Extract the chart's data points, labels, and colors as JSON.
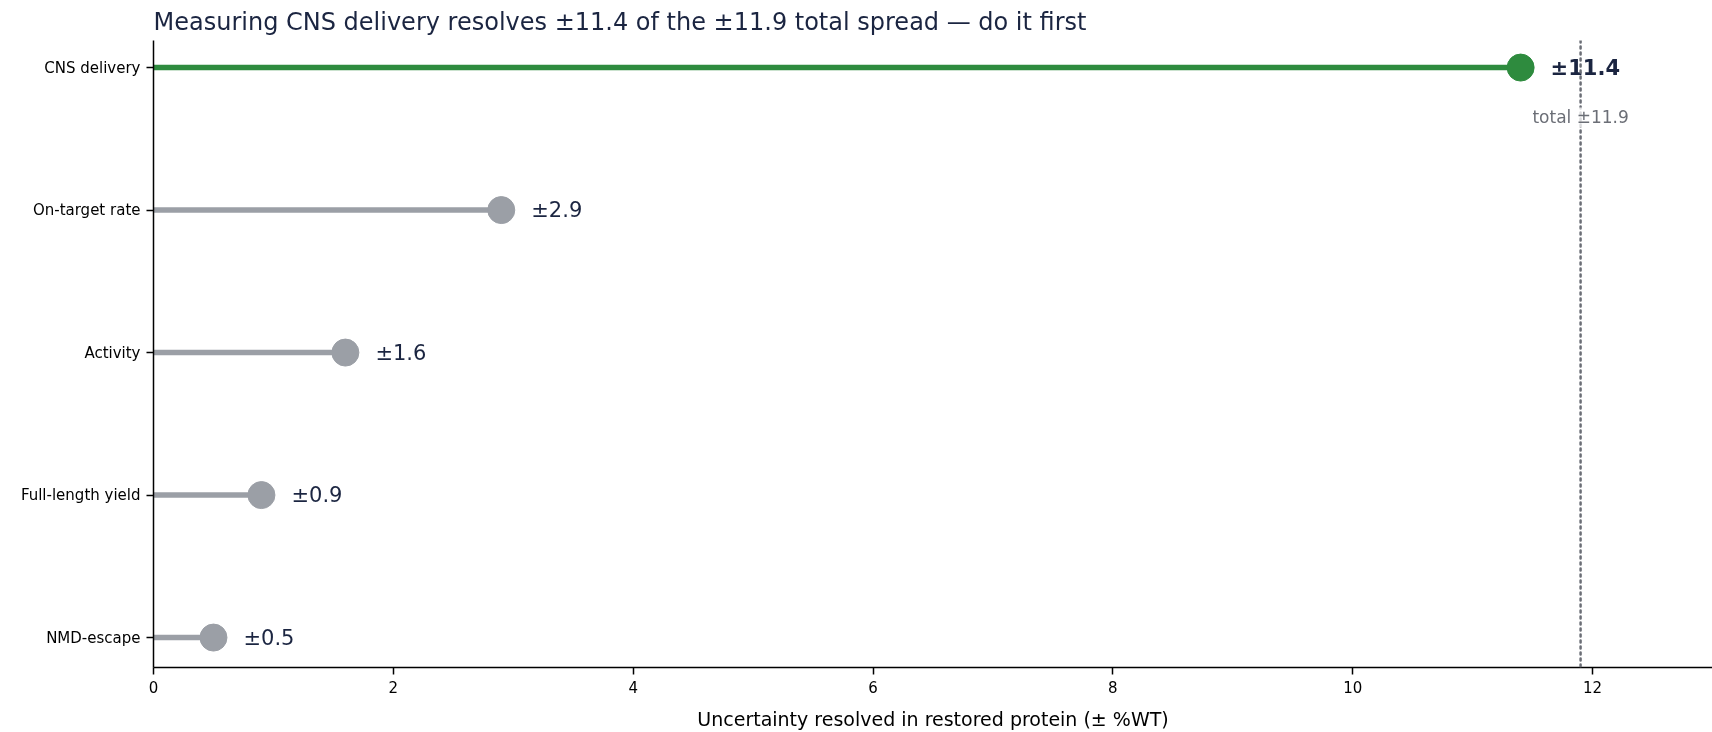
{
  "chart_data": {
    "type": "lollipop",
    "orientation": "horizontal",
    "title": "Measuring CNS delivery resolves ±11.4 of the ±11.9 total spread — do it first",
    "xlabel": "Uncertainty resolved in restored protein (± %WT)",
    "categories": [
      "CNS delivery",
      "On-target rate",
      "Activity",
      "Full-length yield",
      "NMD-escape"
    ],
    "values": [
      11.4,
      2.9,
      1.6,
      0.9,
      0.5
    ],
    "colors": [
      "#2e8b3e",
      "#9b9fa6",
      "#9b9fa6",
      "#9b9fa6",
      "#9b9fa6"
    ],
    "value_labels": [
      "±11.4",
      "±2.9",
      "±1.6",
      "±0.9",
      "±0.5"
    ],
    "xlim": [
      0,
      13
    ],
    "xticks": [
      0,
      2,
      4,
      6,
      8,
      10,
      12
    ],
    "ref_lines": [
      {
        "axis": "x",
        "value": 11.9,
        "label": "total ±11.9",
        "color": "#6b6e76",
        "line_style": "dotted"
      }
    ],
    "marker": "circle",
    "grid": false
  }
}
